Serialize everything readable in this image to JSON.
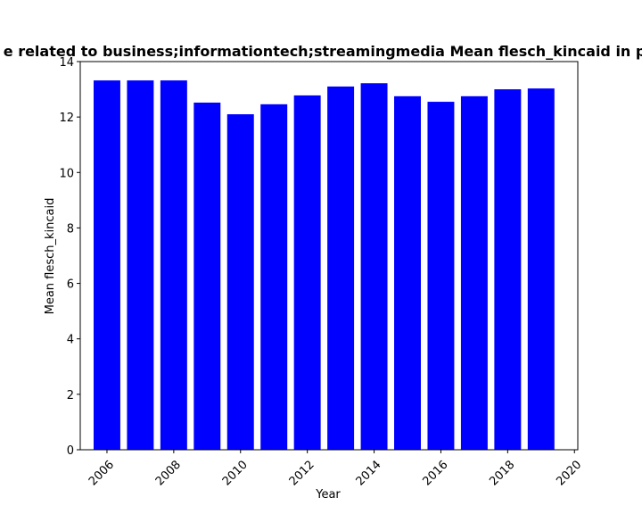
{
  "chart_data": {
    "type": "bar",
    "title": "e related to business;informationtech;streamingmedia Mean flesch_kincaid in pr",
    "xlabel": "Year",
    "ylabel": "Mean flesch_kincaid",
    "x": [
      2006,
      2007,
      2008,
      2009,
      2010,
      2011,
      2012,
      2013,
      2014,
      2015,
      2016,
      2017,
      2018,
      2019
    ],
    "values": [
      13.32,
      13.32,
      13.32,
      12.52,
      12.1,
      12.46,
      12.78,
      13.1,
      13.22,
      12.75,
      12.55,
      12.75,
      13.0,
      13.03
    ],
    "xlim": [
      2005.2,
      2020.1
    ],
    "ylim": [
      0,
      14
    ],
    "xticks": [
      2006,
      2008,
      2010,
      2012,
      2014,
      2016,
      2018,
      2020
    ],
    "yticks": [
      0,
      2,
      4,
      6,
      8,
      10,
      12,
      14
    ],
    "bar_color": "#0000ff",
    "grid": false,
    "legend": "none"
  }
}
